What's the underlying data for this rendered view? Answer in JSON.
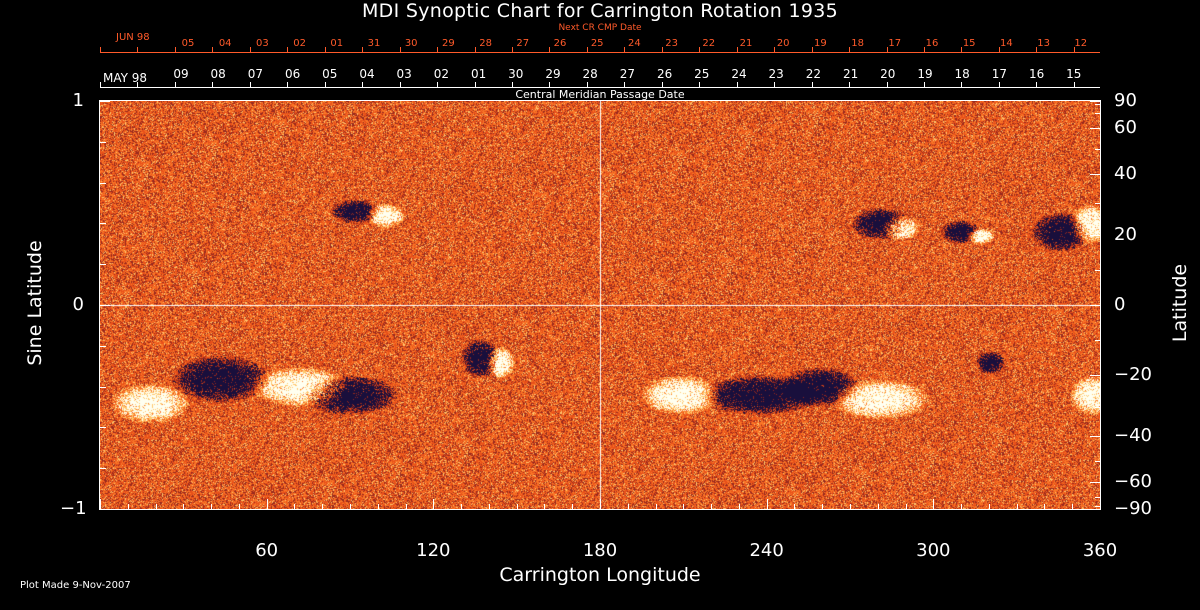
{
  "title": "MDI Synoptic Chart for Carrington Rotation 1935",
  "next_cr_label": "Next CR CMP Date",
  "top_month": "JUN 98",
  "top_dates": [
    "05",
    "04",
    "03",
    "02",
    "01",
    "31",
    "30",
    "29",
    "28",
    "27",
    "26",
    "25",
    "24",
    "23",
    "22",
    "21",
    "20",
    "19",
    "18",
    "17",
    "16",
    "15",
    "14",
    "13",
    "12"
  ],
  "bottom_month": "MAY 98",
  "bottom_dates": [
    "09",
    "08",
    "07",
    "06",
    "05",
    "04",
    "03",
    "02",
    "01",
    "30",
    "29",
    "28",
    "27",
    "26",
    "25",
    "24",
    "23",
    "22",
    "21",
    "20",
    "19",
    "18",
    "17",
    "16",
    "15"
  ],
  "cmp_label": "Central Meridian Passage Date",
  "left_axis": {
    "label": "Sine Latitude",
    "ticks": [
      "1",
      "0",
      "−1"
    ]
  },
  "right_axis": {
    "label": "Latitude",
    "ticks": [
      "90",
      "60",
      "40",
      "20",
      "0",
      "−20",
      "−40",
      "−60",
      "−90"
    ]
  },
  "x_axis": {
    "label": "Carrington Longitude",
    "ticks": [
      "60",
      "120",
      "180",
      "240",
      "300",
      "360"
    ]
  },
  "plot_made": "Plot Made  9-Nov-2007",
  "colors": {
    "background": "#000000",
    "map_base": "#e8501a",
    "positive": "#ffffff",
    "negative": "#1a1040",
    "accent": "#ff5a2a"
  }
}
